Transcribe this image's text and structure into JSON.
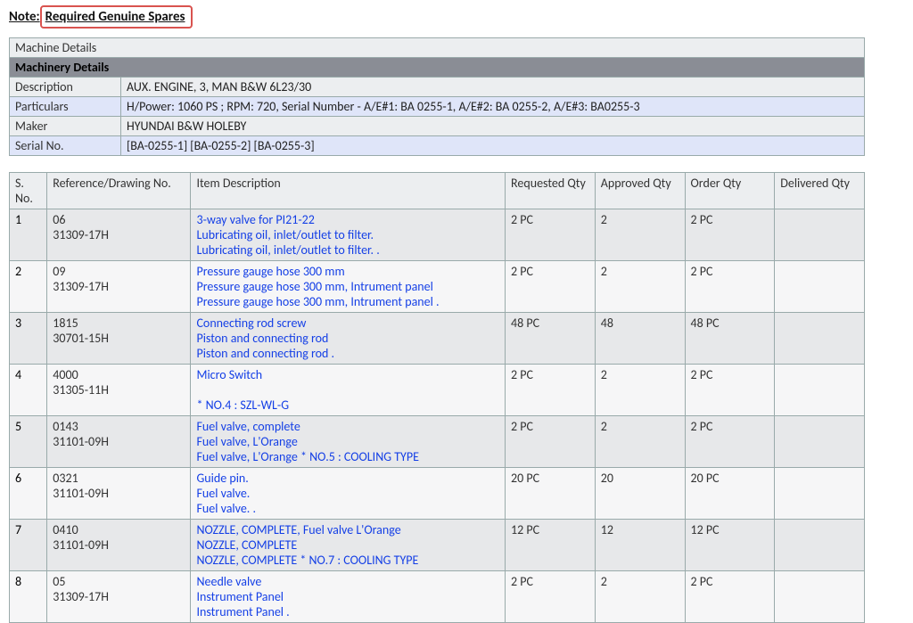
{
  "note": {
    "prefix": "Note:",
    "text": "Required Genuine Spares"
  },
  "machine_section": {
    "header": "Machine Details",
    "title": "Machinery Details",
    "rows": [
      {
        "label": "Description",
        "value": "AUX. ENGINE, 3, MAN B&W 6L23/30",
        "blue": false
      },
      {
        "label": "Particulars",
        "value": "H/Power: 1060 PS ; RPM: 720, Serial Number - A/E#1: BA 0255-1, A/E#2: BA 0255-2, A/E#3: BA0255-3",
        "blue": true
      },
      {
        "label": "Maker",
        "value": "HYUNDAI B&W HOLEBY",
        "blue": false
      },
      {
        "label": "Serial No.",
        "value": "[BA-0255-1] [BA-0255-2] [BA-0255-3]",
        "blue": true
      }
    ]
  },
  "items_table": {
    "columns": [
      "S. No.",
      "Reference/Drawing No.",
      "Item Description",
      "Requested Qty",
      "Approved Qty",
      "Order Qty",
      "Delivered Qty"
    ],
    "rows": [
      {
        "sno": "1",
        "ref": [
          "06",
          "31309-17H"
        ],
        "desc": [
          "3-way valve for PI21-22",
          "Lubricating oil, inlet/outlet to filter.",
          "Lubricating oil, inlet/outlet to filter. ."
        ],
        "req": "2 PC",
        "appr": "2",
        "ord": "2 PC",
        "del": ""
      },
      {
        "sno": "2",
        "ref": [
          "09",
          "31309-17H"
        ],
        "desc": [
          "Pressure gauge hose 300 mm",
          "Pressure gauge hose 300 mm, Intrument panel",
          "Pressure gauge hose 300 mm, Intrument panel ."
        ],
        "req": "2 PC",
        "appr": "2",
        "ord": "2 PC",
        "del": ""
      },
      {
        "sno": "3",
        "ref": [
          "1815",
          "30701-15H"
        ],
        "desc": [
          "Connecting rod screw",
          "Piston and connecting rod",
          "Piston and connecting rod ."
        ],
        "req": "48 PC",
        "appr": "48",
        "ord": "48 PC",
        "del": ""
      },
      {
        "sno": "4",
        "ref": [
          "4000",
          "31305-11H"
        ],
        "desc": [
          "Micro Switch",
          " ",
          "* NO.4 : SZL-WL-G"
        ],
        "req": "2 PC",
        "appr": "2",
        "ord": "2 PC",
        "del": ""
      },
      {
        "sno": "5",
        "ref": [
          "0143",
          "31101-09H"
        ],
        "desc": [
          "Fuel valve, complete",
          "Fuel valve, L'Orange",
          "Fuel valve, L'Orange * NO.5 : COOLING TYPE"
        ],
        "req": "2 PC",
        "appr": "2",
        "ord": "2 PC",
        "del": ""
      },
      {
        "sno": "6",
        "ref": [
          "0321",
          "31101-09H"
        ],
        "desc": [
          "Guide pin.",
          "Fuel valve.",
          "Fuel valve. ."
        ],
        "req": "20 PC",
        "appr": "20",
        "ord": "20 PC",
        "del": ""
      },
      {
        "sno": "7",
        "ref": [
          "0410",
          "31101-09H"
        ],
        "desc": [
          "NOZZLE, COMPLETE, Fuel valve L'Orange",
          "NOZZLE, COMPLETE",
          "NOZZLE, COMPLETE * NO.7 : COOLING TYPE"
        ],
        "req": "12 PC",
        "appr": "12",
        "ord": "12 PC",
        "del": ""
      },
      {
        "sno": "8",
        "ref": [
          "05",
          "31309-17H"
        ],
        "desc": [
          "Needle valve",
          "Instrument Panel",
          "Instrument Panel ."
        ],
        "req": "2 PC",
        "appr": "2",
        "ord": "2 PC",
        "del": ""
      }
    ]
  }
}
